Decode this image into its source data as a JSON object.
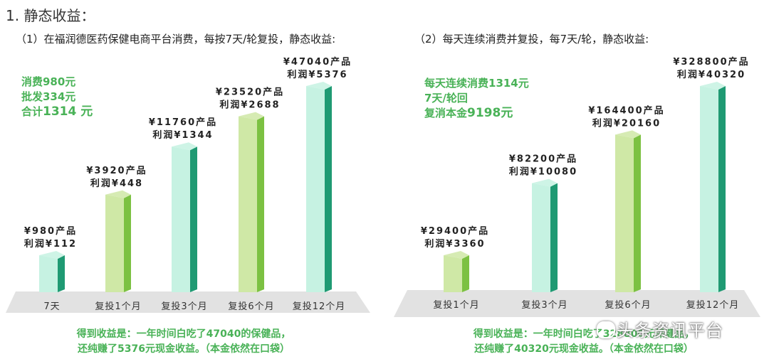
{
  "page": {
    "title": "1. 静态收益：",
    "watermark": "头条资讯平台"
  },
  "panels": [
    {
      "title": "（1）在福润德医药保健电商平台消费，每按7天/轮复投，静态收益:",
      "info": [
        "消费980元",
        "批发334元"
      ],
      "info_total_prefix": "合计",
      "info_total_value": "1314 元",
      "summary": [
        "得到收益是：一年时间白吃了47040的保健品，",
        "还纯赚了5376元现金收益。（本金依然在口袋）"
      ]
    },
    {
      "title": "（2）每天连续消费并复投，每7天/轮，静态收益:",
      "info": [
        "每天连续消费1314元",
        "7天/轮回"
      ],
      "info_total_prefix": "复消本金",
      "info_total_value": "9198元",
      "summary": [
        "得到收益是：一年时间白吃了328800元保健品，",
        "还纯赚了40320元现金收益。（本金依然在口袋）"
      ]
    }
  ],
  "chart_data": [
    {
      "type": "bar",
      "categories": [
        "7天",
        "复投1个月",
        "复投3个月",
        "复投6个月",
        "复投12个月"
      ],
      "series": [
        {
          "name": "产品",
          "values": [
            980,
            3920,
            11760,
            23520,
            47040
          ]
        },
        {
          "name": "利润",
          "values": [
            112,
            448,
            1344,
            2688,
            5376
          ]
        }
      ],
      "labels_product": [
        "¥980产品",
        "¥3920产品",
        "¥11760产品",
        "¥23520产品",
        "¥47040产品"
      ],
      "labels_profit": [
        "利润¥112",
        "利润¥448",
        "利润¥1344",
        "利润¥2688",
        "利润¥5376"
      ],
      "bar_styles": [
        "mint",
        "green",
        "mint",
        "green",
        "mint"
      ]
    },
    {
      "type": "bar",
      "categories": [
        "复投1个月",
        "复投3个月",
        "复投6个月",
        "复投12个月"
      ],
      "series": [
        {
          "name": "产品",
          "values": [
            29400,
            82200,
            164400,
            328800
          ]
        },
        {
          "name": "利润",
          "values": [
            3360,
            10080,
            20160,
            40320
          ]
        }
      ],
      "labels_product": [
        "¥29400产品",
        "¥82200产品",
        "¥164400产品",
        "¥328800产品"
      ],
      "labels_profit": [
        "利润¥3360",
        "利润¥10080",
        "利润¥20160",
        "利润¥40320"
      ],
      "bar_styles": [
        "green",
        "mint",
        "green",
        "mint"
      ]
    }
  ],
  "colors": {
    "mint_front": "#c6f2e2",
    "mint_side": "#1f9a73",
    "green_front": "#cfe8a6",
    "green_side": "#7cc142",
    "floor": "#e2e2e2",
    "info_text": "#49b257"
  }
}
